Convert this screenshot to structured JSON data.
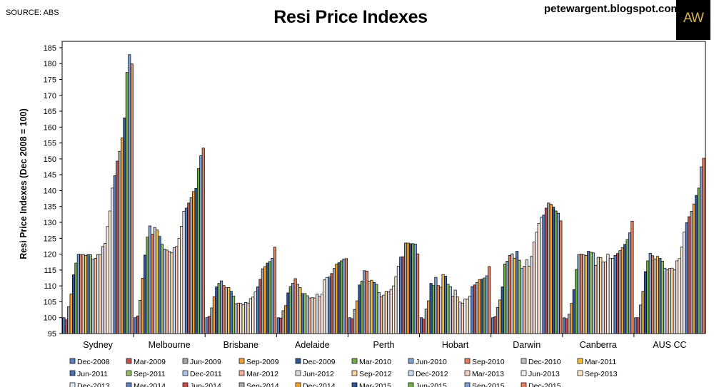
{
  "header": {
    "source": "SOURCE: ABS",
    "site": "petewargent.blogspot.com",
    "logo_text": "AW"
  },
  "colors": {
    "series": [
      "#5b7fbd",
      "#c0504d",
      "#a6a6a6",
      "#f0a030",
      "#2f5597",
      "#70ad47",
      "#7f9fd0",
      "#e0805f",
      "#c0c0c0",
      "#ffc030",
      "#4f72b6",
      "#92c060",
      "#a9c4e8",
      "#f2b09c",
      "#d9d9d9",
      "#fdd8a0",
      "#c9d9f0",
      "#fbd0c4",
      "#f2f2f2",
      "#fde6c8",
      "#e0e8f7"
    ]
  },
  "chart_data": {
    "type": "bar",
    "title": "Resi Price Indexes",
    "ylabel": "Resi Price Indexes (Dec 2008 = 100)",
    "xlabel": "",
    "ylim": [
      95,
      187
    ],
    "yticks": [
      95,
      100,
      105,
      110,
      115,
      120,
      125,
      130,
      135,
      140,
      145,
      150,
      155,
      160,
      165,
      170,
      175,
      180,
      185
    ],
    "grid": false,
    "legend": "bottom",
    "categories": [
      "Sydney",
      "Melbourne",
      "Brisbane",
      "Adelaide",
      "Perth",
      "Hobart",
      "Darwin",
      "Canberra",
      "AUS CC"
    ],
    "series": [
      {
        "name": "Dec-2008",
        "values": [
          100,
          100,
          100,
          100,
          100,
          100,
          100,
          100,
          100
        ]
      },
      {
        "name": "Mar-2009",
        "values": [
          99.3,
          100.5,
          100.4,
          99.9,
          99.7,
          99.6,
          100.3,
          99.7,
          100
        ]
      },
      {
        "name": "Jun-2009",
        "values": [
          103.5,
          105.5,
          103.1,
          102.2,
          102.6,
          102.7,
          103.2,
          101.1,
          104
        ]
      },
      {
        "name": "Sep-2009",
        "values": [
          107.5,
          112.4,
          106.6,
          103.8,
          105.3,
          105.3,
          105.6,
          104.5,
          108.3
        ]
      },
      {
        "name": "Dec-2009",
        "values": [
          113.5,
          119.7,
          109.7,
          107.8,
          110.3,
          110.8,
          109.7,
          108.8,
          114.5
        ]
      },
      {
        "name": "Mar-2010",
        "values": [
          117.2,
          125.4,
          110.8,
          109.8,
          111.5,
          110.1,
          116.9,
          115.2,
          117.9
        ]
      },
      {
        "name": "Jun-2010",
        "values": [
          120,
          128.9,
          111.6,
          110.8,
          114.8,
          112.7,
          117.8,
          119.9,
          120.3
        ]
      },
      {
        "name": "Sep-2010",
        "values": [
          119.9,
          126.3,
          110.1,
          112.3,
          114.7,
          110.1,
          119.6,
          120,
          119.5
        ]
      },
      {
        "name": "Dec-2010",
        "values": [
          119.9,
          128.4,
          109.4,
          110.5,
          111.5,
          109.6,
          120.1,
          119.8,
          118.4
        ]
      },
      {
        "name": "Mar-2011",
        "values": [
          119.6,
          127.6,
          109.5,
          109.5,
          111.8,
          113.6,
          118.7,
          119.6,
          119.3
        ]
      },
      {
        "name": "Jun-2011",
        "values": [
          119.9,
          125.6,
          108.3,
          107.6,
          111.1,
          113.1,
          120.9,
          120.9,
          118.7
        ]
      },
      {
        "name": "Sep-2011",
        "values": [
          119.8,
          123.1,
          106.8,
          107.6,
          110.5,
          110.5,
          118.1,
          120.6,
          117.8
        ]
      },
      {
        "name": "Dec-2011",
        "values": [
          118.4,
          121.6,
          104.4,
          106.9,
          107.9,
          109.8,
          115.5,
          120.4,
          115.6
        ]
      },
      {
        "name": "Mar-2012",
        "values": [
          118.7,
          121.3,
          104.6,
          106.2,
          106.6,
          106.8,
          116.2,
          116.5,
          115.1
        ]
      },
      {
        "name": "Jun-2012",
        "values": [
          119.9,
          120.8,
          104.5,
          106.3,
          107.1,
          108.7,
          118.2,
          119,
          115.5
        ]
      },
      {
        "name": "Sep-2012",
        "values": [
          119.9,
          120.5,
          104.1,
          106.2,
          108.3,
          106.5,
          116.2,
          118.9,
          115.6
        ]
      },
      {
        "name": "Dec-2012",
        "values": [
          122.4,
          122,
          104.8,
          107.4,
          108.2,
          104.9,
          119.3,
          117.5,
          115.1
        ]
      },
      {
        "name": "Mar-2013",
        "values": [
          123.4,
          122.4,
          104.6,
          106.7,
          108.9,
          104.5,
          123.8,
          117.5,
          117.9
        ]
      },
      {
        "name": "Jun-2013",
        "values": [
          128.7,
          125,
          106,
          107.4,
          110,
          105.9,
          126.9,
          120,
          118.6
        ]
      },
      {
        "name": "Sep-2013",
        "values": [
          133.6,
          128.8,
          106.5,
          111.9,
          112.9,
          105.8,
          129.7,
          118.6,
          122.2
        ]
      },
      {
        "name": "Dec-2013",
        "values": [
          140.8,
          133.5,
          108.1,
          112.6,
          116.2,
          106.7,
          131.6,
          118.7,
          127
        ]
      },
      {
        "name": "Mar-2014",
        "values": [
          144.7,
          134.5,
          109.7,
          112.8,
          119.1,
          109.8,
          132.3,
          119.6,
          129.9
        ]
      },
      {
        "name": "Jun-2014",
        "values": [
          149.3,
          136.1,
          112.1,
          113.9,
          119.2,
          110.3,
          134.5,
          120.2,
          131.8
        ]
      },
      {
        "name": "Sep-2014",
        "values": [
          152.4,
          137.8,
          115.4,
          115.5,
          123.5,
          111.1,
          136.1,
          121.1,
          133.5
        ]
      },
      {
        "name": "Dec-2014",
        "values": [
          156.6,
          139.7,
          116.1,
          116.9,
          123.5,
          112,
          135.7,
          122,
          135.8
        ]
      },
      {
        "name": "Mar-2015",
        "values": [
          162.9,
          140.7,
          117.2,
          117.3,
          123.3,
          112.1,
          134.8,
          123.1,
          138.5
        ]
      },
      {
        "name": "Jun-2015",
        "values": [
          177.2,
          146.9,
          117.7,
          117.9,
          123.3,
          112.5,
          133.6,
          124.6,
          140.8
        ]
      },
      {
        "name": "Sep-2015",
        "values": [
          182.8,
          151,
          118.7,
          118.5,
          123.2,
          113.2,
          132.9,
          126.7,
          147.5
        ]
      },
      {
        "name": "Dec-2015",
        "values": [
          179.9,
          153.4,
          122.2,
          118.6,
          120.1,
          116.1,
          130.5,
          130.4,
          150.2
        ]
      }
    ]
  }
}
